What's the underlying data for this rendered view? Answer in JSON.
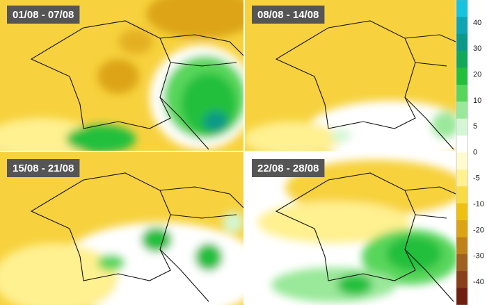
{
  "panels": [
    {
      "title": "01/08 - 07/08"
    },
    {
      "title": "08/08 - 14/08"
    },
    {
      "title": "15/08 - 21/08"
    },
    {
      "title": "22/08 - 28/08"
    }
  ],
  "legend": {
    "ticks": [
      40,
      30,
      20,
      10,
      5,
      0,
      -5,
      -10,
      -20,
      -30,
      -40
    ],
    "colors": [
      "#17c4e0",
      "#0fa5b4",
      "#0b9a88",
      "#12a85a",
      "#22bf3c",
      "#58d65c",
      "#9ae89a",
      "#d4f6d4",
      "#ffffff",
      "#fffad0",
      "#fff090",
      "#f9db44",
      "#f0c010",
      "#dca414",
      "#c08218",
      "#a06020",
      "#8a4018",
      "#702010"
    ]
  }
}
